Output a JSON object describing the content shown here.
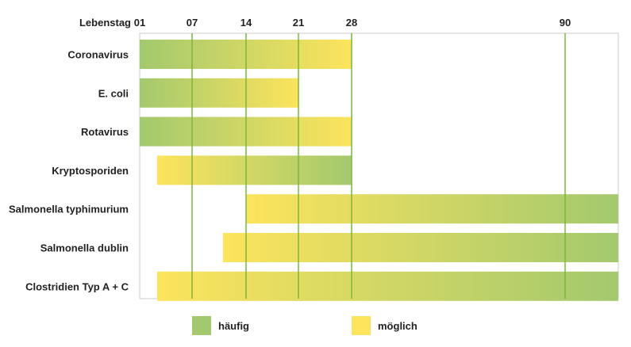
{
  "chart_data": {
    "type": "bar",
    "orientation": "horizontal-range",
    "axis_label": "Lebenstag",
    "ticks": [
      "01",
      "07",
      "14",
      "21",
      "28",
      "90"
    ],
    "categories": [
      "Coronavirus",
      "E. coli",
      "Rotavirus",
      "Kryptosporiden",
      "Salmonella typhimurium",
      "Salmonella dublin",
      "Clostridien Typ A + C"
    ],
    "bars": [
      {
        "label": "Coronavirus",
        "start": 1,
        "end": 28,
        "fade": "häufig-to-möglich"
      },
      {
        "label": "E. coli",
        "start": 1,
        "end": 21,
        "fade": "häufig-to-möglich"
      },
      {
        "label": "Rotavirus",
        "start": 1,
        "end": 28,
        "fade": "häufig-to-möglich"
      },
      {
        "label": "Kryptosporiden",
        "start": 3,
        "end": 28,
        "fade": "möglich-to-häufig"
      },
      {
        "label": "Salmonella typhimurium",
        "start": 14,
        "end": 100,
        "fade": "möglich-to-häufig"
      },
      {
        "label": "Salmonella dublin",
        "start": 11,
        "end": 100,
        "fade": "möglich-to-häufig"
      },
      {
        "label": "Clostridien Typ A + C",
        "start": 3,
        "end": 100,
        "fade": "möglich-to-häufig"
      }
    ],
    "legend": [
      {
        "name": "häufig",
        "color": "#a3c96e"
      },
      {
        "name": "möglich",
        "color": "#fde45c"
      }
    ],
    "gridlines": true,
    "legend_position": "bottom",
    "colors": {
      "green": "#a3c96e",
      "yellow": "#fde45c",
      "grid": "#7ab83a",
      "frame": "#cccccc"
    }
  }
}
